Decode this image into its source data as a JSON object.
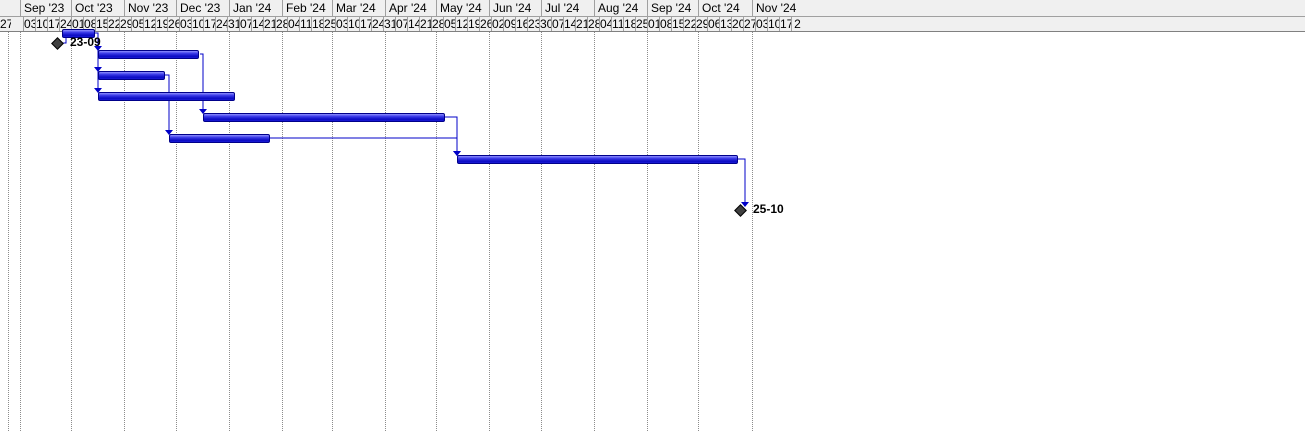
{
  "timeline": {
    "months": [
      "Sep '23",
      "Oct '23",
      "Nov '23",
      "Dec '23",
      "Jan '24",
      "Feb '24",
      "Mar '24",
      "Apr '24",
      "May '24",
      "Jun '24",
      "Jul '24",
      "Aug '24",
      "Sep '24",
      "Oct '24",
      "Nov '24"
    ],
    "week_labels": [
      "27",
      "03",
      "10",
      "17",
      "24",
      "01",
      "08",
      "15",
      "22",
      "29",
      "05",
      "12",
      "19",
      "26",
      "03",
      "10",
      "17",
      "24",
      "31",
      "07",
      "14",
      "21",
      "28",
      "04",
      "11",
      "18",
      "25",
      "03",
      "10",
      "17",
      "24",
      "31",
      "07",
      "14",
      "21",
      "28",
      "05",
      "12",
      "19",
      "26",
      "02",
      "09",
      "16",
      "23",
      "30",
      "07",
      "14",
      "21",
      "28",
      "04",
      "11",
      "18",
      "25",
      "01",
      "08",
      "15",
      "22",
      "29",
      "06",
      "13",
      "20",
      "27",
      "03",
      "10",
      "17",
      "2"
    ]
  },
  "milestones": [
    {
      "label": "23-09",
      "date": "2023-09-23"
    },
    {
      "label": "25-10",
      "date": "2024-10-25"
    }
  ],
  "tasks": [
    {
      "start": "2023-09-26",
      "end": "2023-10-15"
    },
    {
      "start": "2023-10-17",
      "end": "2023-12-15"
    },
    {
      "start": "2023-10-17",
      "end": "2023-11-25"
    },
    {
      "start": "2023-10-17",
      "end": "2024-01-05"
    },
    {
      "start": "2023-12-17",
      "end": "2024-05-06"
    },
    {
      "start": "2023-11-27",
      "end": "2024-01-25"
    },
    {
      "start": "2024-05-13",
      "end": "2024-10-24"
    }
  ],
  "dependencies": [
    {
      "from": "m0",
      "to": 0
    },
    {
      "from": 0,
      "to": 1
    },
    {
      "from": 0,
      "to": 2
    },
    {
      "from": 0,
      "to": 3
    },
    {
      "from": 1,
      "to": 4
    },
    {
      "from": 2,
      "to": 5
    },
    {
      "from": 4,
      "to": 6
    },
    {
      "from": 5,
      "to": 6
    },
    {
      "from": 6,
      "to": "m1"
    }
  ],
  "colors": {
    "bar": "#1a1ad6",
    "link": "#0000c8",
    "milestone": "#404040",
    "gridline": "#8c8c8c",
    "header_bg": "#f0f0f0"
  }
}
